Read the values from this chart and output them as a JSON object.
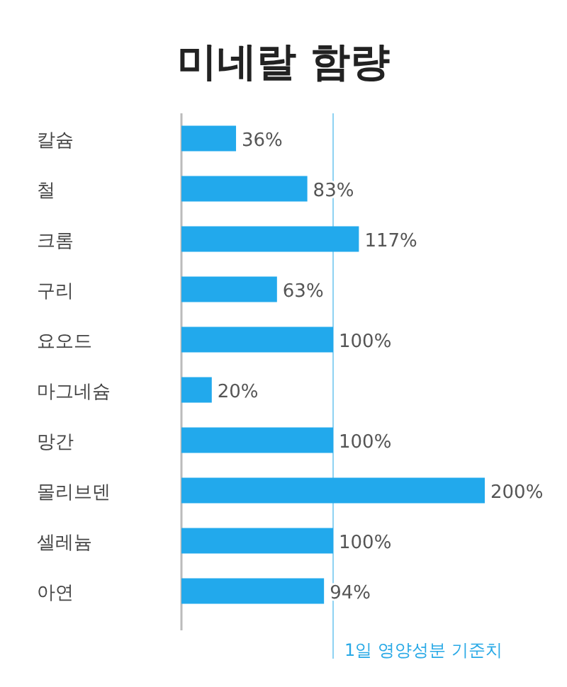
{
  "chart_data": {
    "type": "bar",
    "orientation": "horizontal",
    "title": "미네랄 함량",
    "categories": [
      "칼슘",
      "철",
      "크롬",
      "구리",
      "요오드",
      "마그네슘",
      "망간",
      "몰리브덴",
      "셀레늄",
      "아연"
    ],
    "values": [
      36,
      83,
      117,
      63,
      100,
      20,
      100,
      200,
      100,
      94
    ],
    "value_labels": [
      "36%",
      "83%",
      "117%",
      "63%",
      "100%",
      "20%",
      "100%",
      "200%",
      "100%",
      "94%"
    ],
    "color": "#22a9ec",
    "ref_lines": [
      {
        "axis": "x",
        "value": 100,
        "label": "1일 영양성분 기준치",
        "color": "#8ed2f2"
      }
    ]
  }
}
